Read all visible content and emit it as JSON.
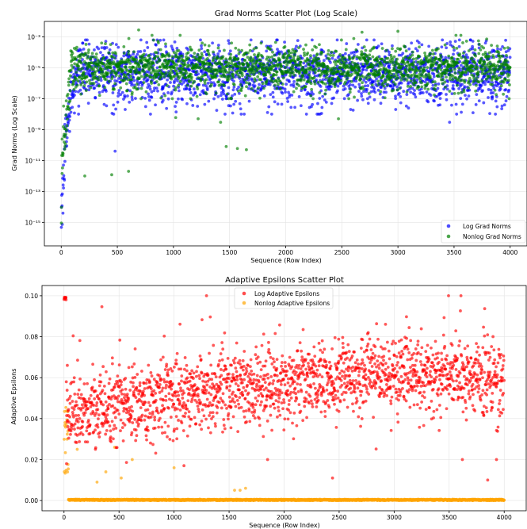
{
  "chart_data": [
    {
      "type": "scatter",
      "title": "Grad Norms Scatter Plot (Log Scale)",
      "xlabel": "Sequence (Row Index)",
      "ylabel": "Grad Norms (Log Scale)",
      "yscale": "log",
      "xlim": [
        -150,
        4150
      ],
      "ylim": [
        3e-17,
        0.01
      ],
      "xticks": [
        0,
        500,
        1000,
        1500,
        2000,
        2500,
        3000,
        3500,
        4000
      ],
      "xtick_labels": [
        "0",
        "500",
        "1000",
        "1500",
        "2000",
        "2500",
        "3000",
        "3500",
        "4000"
      ],
      "yticks": [
        1e-15,
        1e-13,
        1e-11,
        1e-09,
        1e-07,
        1e-05,
        0.001
      ],
      "ytick_labels": [
        "10⁻¹⁵",
        "10⁻¹³",
        "10⁻¹¹",
        "10⁻⁹",
        "10⁻⁷",
        "10⁻⁵",
        "10⁻³"
      ],
      "grid": true,
      "legend_position": "lower-right",
      "n_points_per_series": 4000,
      "series": [
        {
          "name": "Log Grad Norms",
          "color": "#0000ff",
          "profile": {
            "central_value": 5e-06,
            "spread_decades": 0.9,
            "low_outlier_min": 1e-08,
            "warmup_x_end": 120,
            "warmup_min": 3e-16
          },
          "outliers": [
            {
              "x": 1130,
              "y": 0.00015
            },
            {
              "x": 3780,
              "y": 0.0004
            },
            {
              "x": 3960,
              "y": 0.0006
            },
            {
              "x": 2890,
              "y": 0.00012
            },
            {
              "x": 570,
              "y": 2e-08
            },
            {
              "x": 1850,
              "y": 3e-08
            },
            {
              "x": 2980,
              "y": 2e-08
            },
            {
              "x": 3460,
              "y": 3e-09
            },
            {
              "x": 480,
              "y": 4e-11
            },
            {
              "x": 1470,
              "y": 1e-07
            },
            {
              "x": 2730,
              "y": 1e-07
            },
            {
              "x": 900,
              "y": 6e-08
            },
            {
              "x": 3950,
              "y": 4e-08
            }
          ]
        },
        {
          "name": "Nonlog Grad Norms",
          "color": "#008000",
          "profile": {
            "central_value": 1e-05,
            "spread_decades": 0.65,
            "low_outlier_min": 1e-07,
            "warmup_x_end": 90,
            "warmup_min": 1e-14
          },
          "outliers": [
            {
              "x": 690,
              "y": 0.0028
            },
            {
              "x": 2680,
              "y": 0.002
            },
            {
              "x": 3000,
              "y": 0.0023
            },
            {
              "x": 360,
              "y": 0.0004
            },
            {
              "x": 930,
              "y": 0.00035
            },
            {
              "x": 1280,
              "y": 0.0003
            },
            {
              "x": 1680,
              "y": 0.0003
            },
            {
              "x": 2180,
              "y": 0.0003
            },
            {
              "x": 3420,
              "y": 0.0003
            },
            {
              "x": 1470,
              "y": 8e-11
            },
            {
              "x": 1570,
              "y": 6e-11
            },
            {
              "x": 1650,
              "y": 5e-11
            },
            {
              "x": 210,
              "y": 1e-12
            },
            {
              "x": 600,
              "y": 2e-12
            },
            {
              "x": 450,
              "y": 1.2e-12
            },
            {
              "x": 1220,
              "y": 5e-09
            },
            {
              "x": 1020,
              "y": 6e-09
            },
            {
              "x": 2470,
              "y": 5e-09
            },
            {
              "x": 1420,
              "y": 3e-09
            }
          ]
        }
      ]
    },
    {
      "type": "scatter",
      "title": "Adaptive Epsilons Scatter Plot",
      "xlabel": "Sequence (Row Index)",
      "ylabel": "Adaptive Epsilons",
      "xlim": [
        -200,
        4200
      ],
      "ylim": [
        -0.005,
        0.105
      ],
      "xticks": [
        0,
        500,
        1000,
        1500,
        2000,
        2500,
        3000,
        3500,
        4000
      ],
      "xtick_labels": [
        "0",
        "500",
        "1000",
        "1500",
        "2000",
        "2500",
        "3000",
        "3500",
        "4000"
      ],
      "yticks": [
        0.0,
        0.02,
        0.04,
        0.06,
        0.08,
        0.1
      ],
      "ytick_labels": [
        "0.00",
        "0.02",
        "0.04",
        "0.06",
        "0.08",
        "0.10"
      ],
      "grid": true,
      "legend_position": "upper-center",
      "n_points_per_series": 4000,
      "series": [
        {
          "name": "Log Adaptive Epsilons",
          "color": "#ff0000",
          "profile": {
            "start_mean": 0.04,
            "end_mean": 0.06,
            "spread": 0.009,
            "min": 0.018,
            "max": 0.1,
            "warmup_x_end": 20,
            "warmup_value": 0.1
          },
          "outliers": [
            {
              "x": 30,
              "y": 0.066
            },
            {
              "x": 1090,
              "y": 0.017
            },
            {
              "x": 1850,
              "y": 0.02
            },
            {
              "x": 2440,
              "y": 0.011
            },
            {
              "x": 3620,
              "y": 0.02
            },
            {
              "x": 3930,
              "y": 0.02
            },
            {
              "x": 3850,
              "y": 0.01
            }
          ]
        },
        {
          "name": "Nonlog Adaptive Epsilons",
          "color": "#ffa500",
          "profile": {
            "baseline": 0.0,
            "warmup_x_end": 40,
            "warmup_min": 0.013,
            "warmup_max": 0.046
          },
          "outliers": [
            {
              "x": 120,
              "y": 0.025
            },
            {
              "x": 300,
              "y": 0.009
            },
            {
              "x": 380,
              "y": 0.014
            },
            {
              "x": 460,
              "y": 0.026
            },
            {
              "x": 520,
              "y": 0.011
            },
            {
              "x": 620,
              "y": 0.02
            },
            {
              "x": 1000,
              "y": 0.016
            },
            {
              "x": 1550,
              "y": 0.005
            },
            {
              "x": 1600,
              "y": 0.005
            },
            {
              "x": 1650,
              "y": 0.006
            }
          ]
        }
      ]
    }
  ]
}
